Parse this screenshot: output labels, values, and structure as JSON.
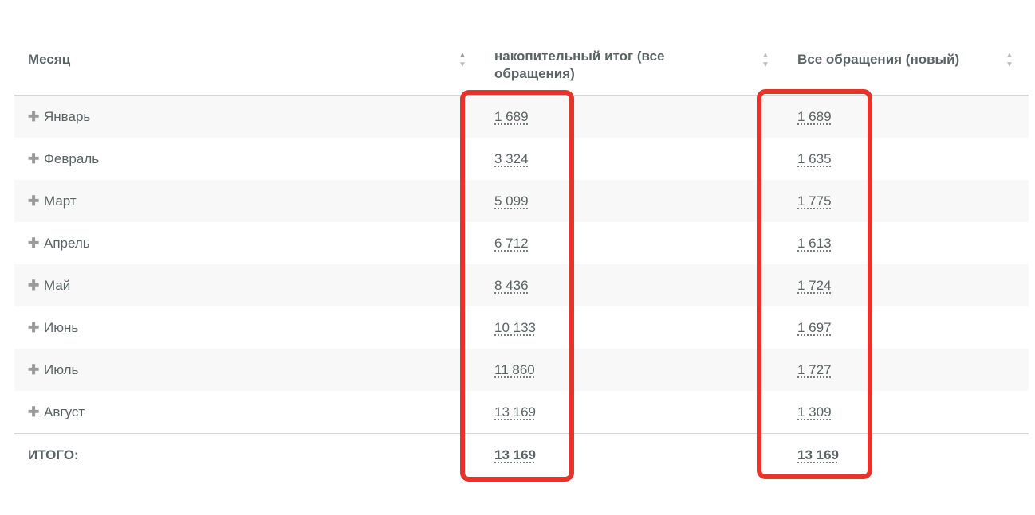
{
  "header": {
    "month": "Месяц",
    "cumulative": "накопительный итог (все обращения)",
    "all_new": "Все обращения (новый)"
  },
  "rows": [
    {
      "month": "Январь",
      "cumulative": "1 689",
      "all_new": "1 689"
    },
    {
      "month": "Февраль",
      "cumulative": "3 324",
      "all_new": "1 635"
    },
    {
      "month": "Март",
      "cumulative": "5 099",
      "all_new": "1 775"
    },
    {
      "month": "Апрель",
      "cumulative": "6 712",
      "all_new": "1 613"
    },
    {
      "month": "Май",
      "cumulative": "8 436",
      "all_new": "1 724"
    },
    {
      "month": "Июнь",
      "cumulative": "10 133",
      "all_new": "1 697"
    },
    {
      "month": "Июль",
      "cumulative": "11 860",
      "all_new": "1 727"
    },
    {
      "month": "Август",
      "cumulative": "13 169",
      "all_new": "1 309"
    }
  ],
  "total": {
    "label": "ИТОГО:",
    "cumulative": "13 169",
    "all_new": "13 169"
  },
  "icons": {
    "expand": "plus-icon",
    "sort": "sort-arrows-icon"
  },
  "colors": {
    "highlight": "#e8332a",
    "text": "#5b6465",
    "row_shade": "#f8f8f8"
  }
}
